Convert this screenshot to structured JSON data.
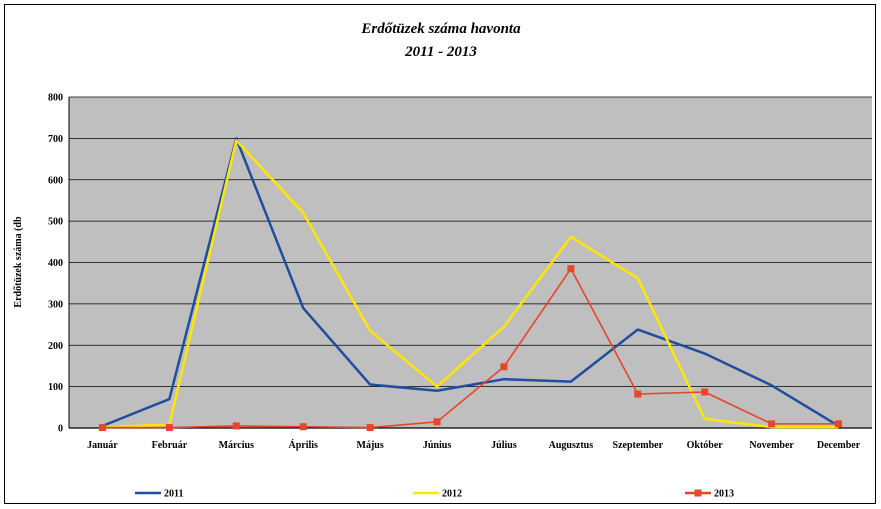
{
  "chart_data": {
    "type": "line",
    "title": "Erdőtüzek száma havonta",
    "subtitle": "2011 - 2013",
    "xlabel": "",
    "ylabel": "Erdőtüzek száma (db",
    "ylim": [
      0,
      800
    ],
    "yticks": [
      0,
      100,
      200,
      300,
      400,
      500,
      600,
      700,
      800
    ],
    "grid": true,
    "legend": "bottom",
    "categories": [
      "Január",
      "Február",
      "Március",
      "Április",
      "Május",
      "Június",
      "Július",
      "Augusztus",
      "Szeptember",
      "Október",
      "November",
      "December"
    ],
    "series": [
      {
        "name": "2011",
        "color": "#1f4e9e",
        "marker": "none",
        "values": [
          5,
          70,
          700,
          290,
          105,
          90,
          118,
          112,
          238,
          180,
          103,
          5
        ]
      },
      {
        "name": "2012",
        "color": "#ffe600",
        "marker": "none",
        "values": [
          2,
          8,
          695,
          520,
          235,
          100,
          245,
          462,
          362,
          22,
          2,
          2
        ]
      },
      {
        "name": "2013",
        "color": "#e8452a",
        "marker": "square",
        "values": [
          1,
          1,
          5,
          3,
          1,
          15,
          148,
          385,
          82,
          87,
          10,
          10
        ]
      }
    ]
  }
}
